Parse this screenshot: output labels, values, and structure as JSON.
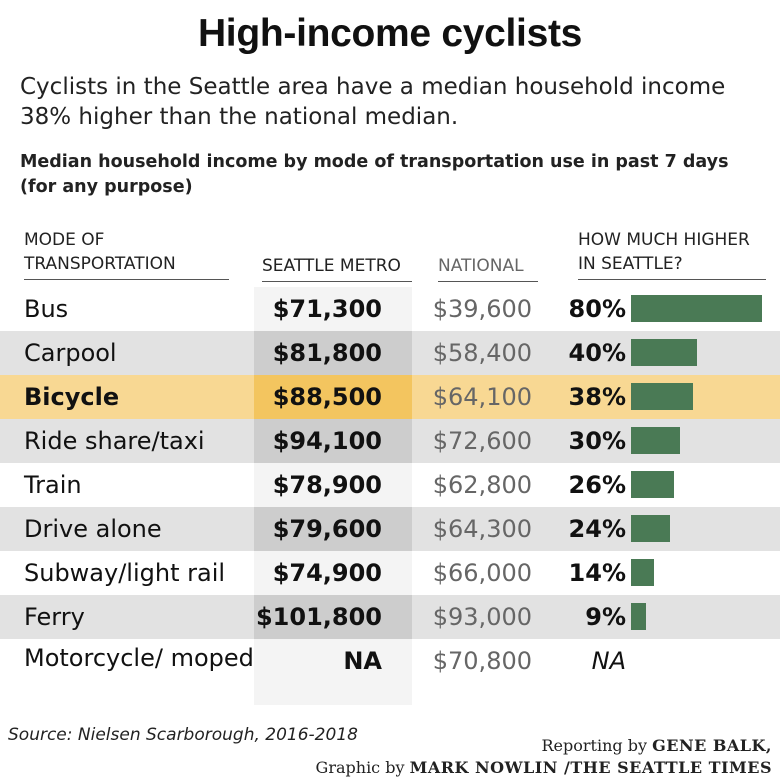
{
  "title": "High-income cyclists",
  "subtitle": "Cyclists in the Seattle area have a median household income 38% higher than the national median.",
  "chart_title": "Median household income by mode of transportation use in past 7 days (for any purpose)",
  "headers": {
    "mode": "MODE OF TRANSPORTATION",
    "seattle": "SEATTLE METRO",
    "national": "NATIONAL",
    "higher": "HOW MUCH HIGHER IN SEATTLE?"
  },
  "colors": {
    "bar": "#4a7a55",
    "highlight_row": "#f8d893",
    "highlight_seattle": "#f3c55f",
    "shaded_row": "#e2e2e2"
  },
  "chart_data": {
    "type": "table",
    "columns": [
      "MODE OF TRANSPORTATION",
      "SEATTLE METRO",
      "NATIONAL",
      "HOW MUCH HIGHER IN SEATTLE?"
    ],
    "rows": [
      {
        "mode": "Bus",
        "seattle": "$71,300",
        "national": "$39,600",
        "higher": "80%",
        "higher_value": 80
      },
      {
        "mode": "Carpool",
        "seattle": "$81,800",
        "national": "$58,400",
        "higher": "40%",
        "higher_value": 40
      },
      {
        "mode": "Bicycle",
        "seattle": "$88,500",
        "national": "$64,100",
        "higher": "38%",
        "higher_value": 38,
        "highlight": true
      },
      {
        "mode": "Ride share/taxi",
        "seattle": "$94,100",
        "national": "$72,600",
        "higher": "30%",
        "higher_value": 30
      },
      {
        "mode": "Train",
        "seattle": "$78,900",
        "national": "$62,800",
        "higher": "26%",
        "higher_value": 26
      },
      {
        "mode": "Drive alone",
        "seattle": "$79,600",
        "national": "$64,300",
        "higher": "24%",
        "higher_value": 24
      },
      {
        "mode": "Subway/light rail",
        "seattle": "$74,900",
        "national": "$66,000",
        "higher": "14%",
        "higher_value": 14
      },
      {
        "mode": "Ferry",
        "seattle": "$101,800",
        "national": "$93,000",
        "higher": "9%",
        "higher_value": 9
      },
      {
        "mode": "Motorcycle/ moped",
        "seattle": "NA",
        "national": "$70,800",
        "higher": "NA",
        "higher_value": null
      }
    ],
    "bar_max": 80
  },
  "source": "Source: Nielsen Scarborough, 2016-2018",
  "credits": {
    "line1_prefix": "Reporting by",
    "line1_name": "GENE BALK,",
    "line2_prefix": "Graphic by",
    "line2_name": "MARK NOWLIN /THE SEATTLE TIMES"
  }
}
